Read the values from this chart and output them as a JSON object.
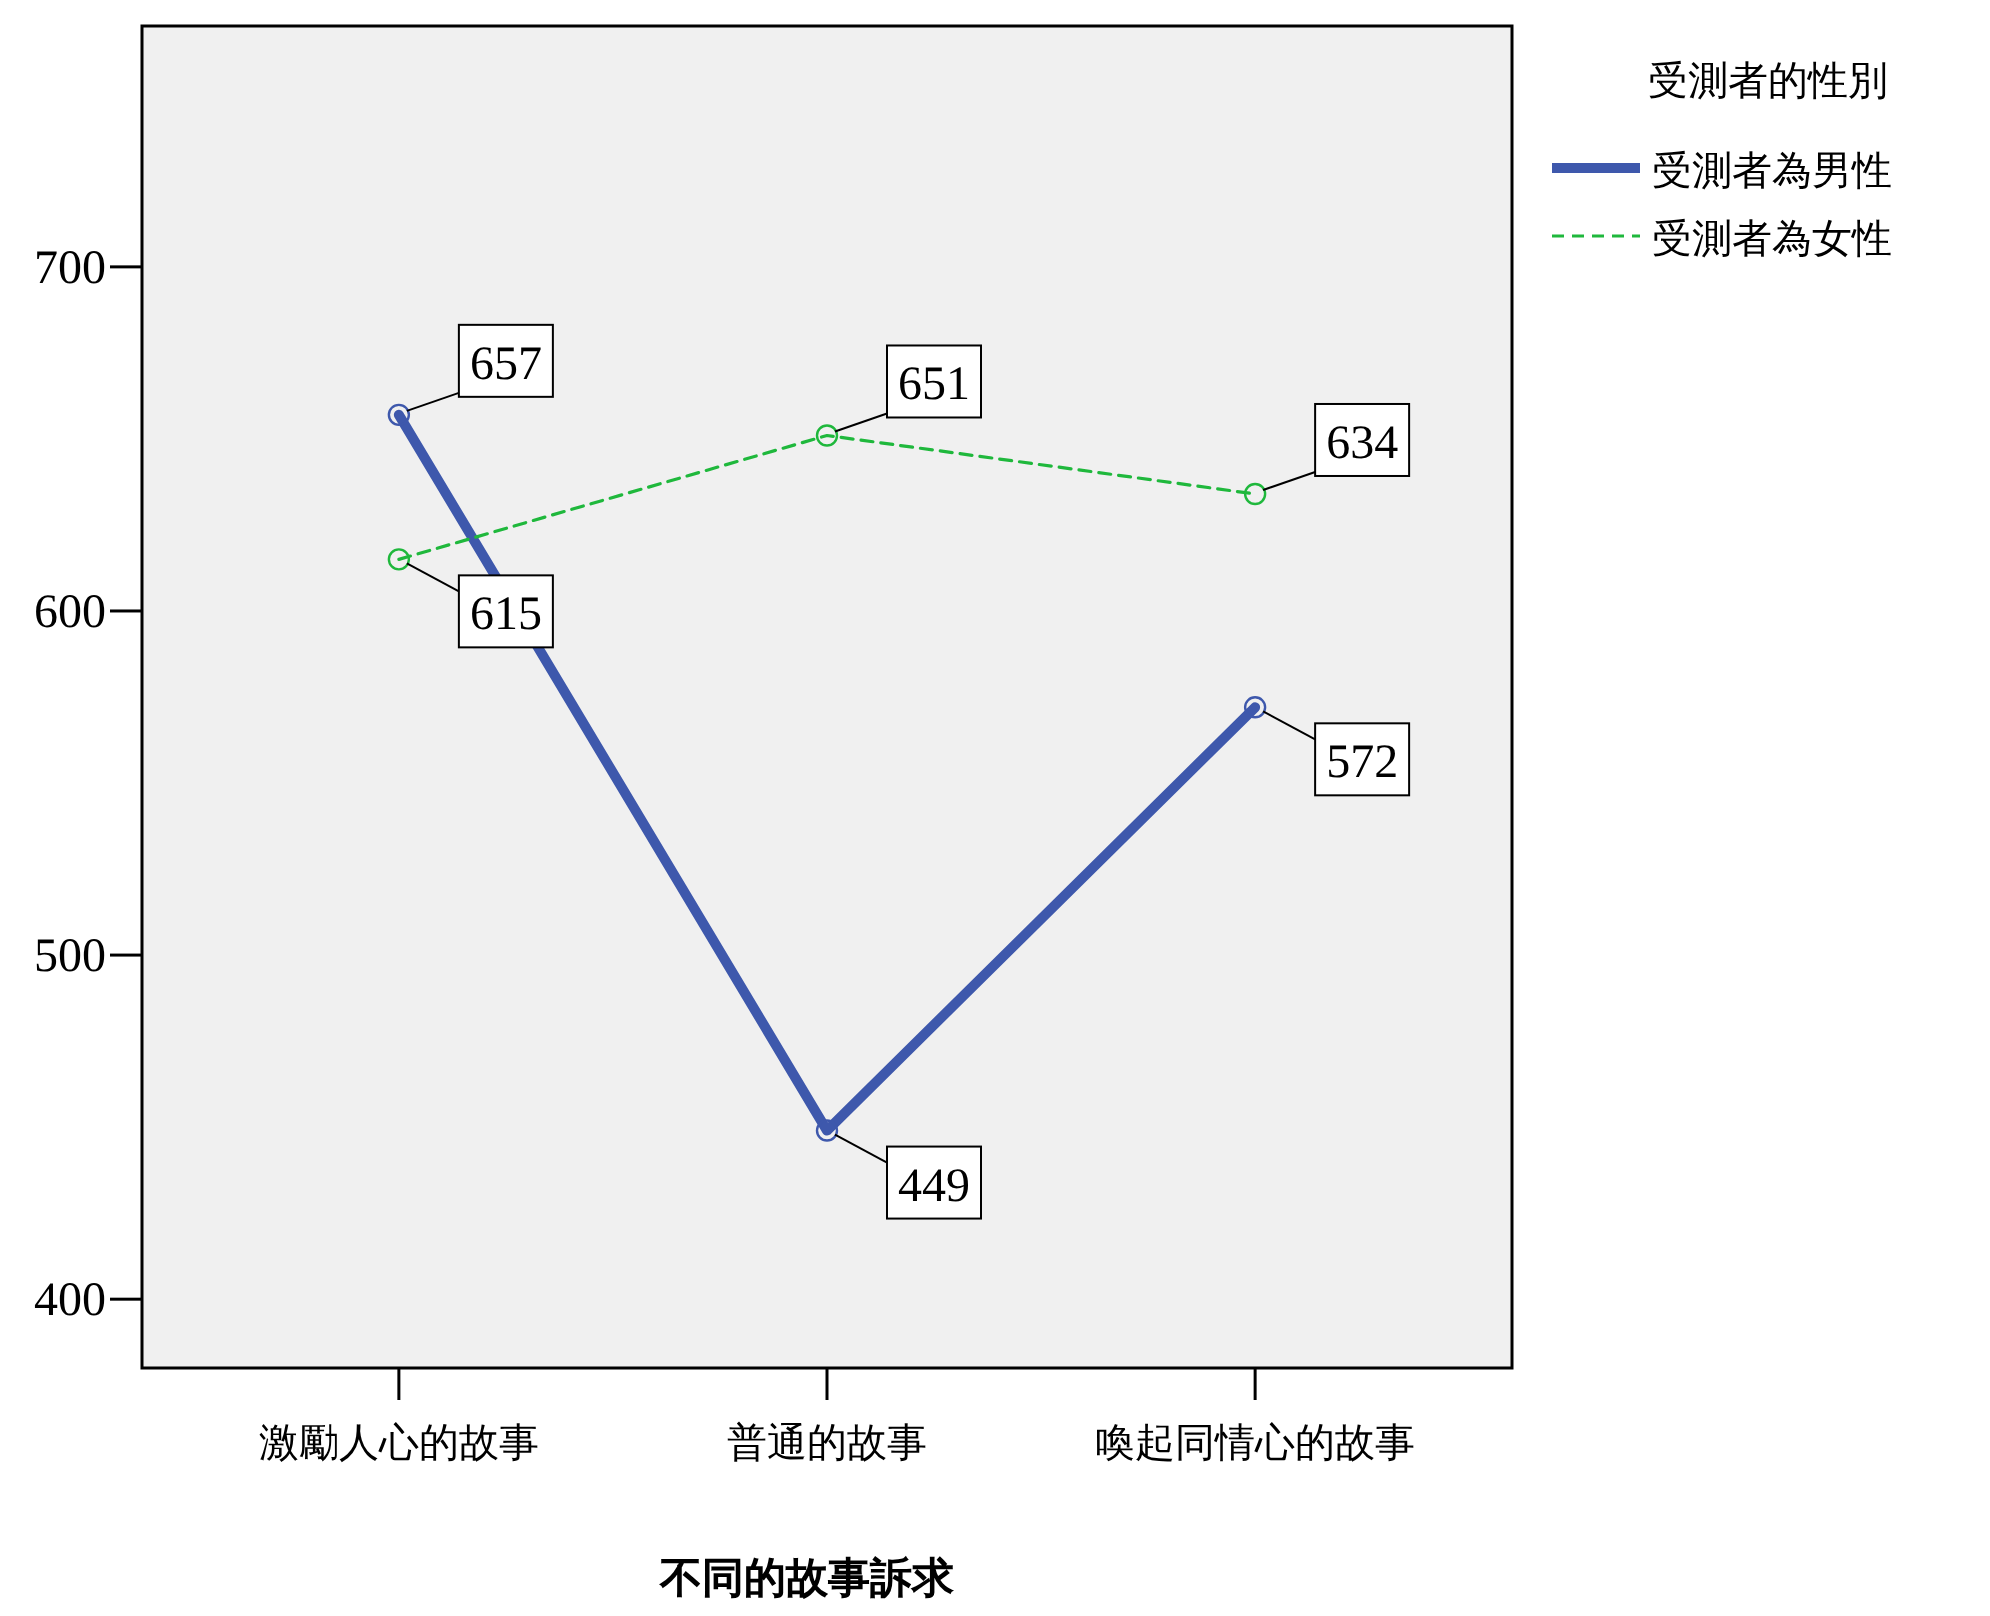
{
  "chart_data": {
    "type": "line",
    "xlabel": "不同的故事訴求",
    "legend_title": "受測者的性別",
    "categories": [
      "激勵人心的故事",
      "普通的故事",
      "喚起同情心的故事"
    ],
    "series": [
      {
        "name": "受測者為男性",
        "color": "#3e58ac",
        "values": [
          657,
          449,
          572
        ],
        "line_style": "solid"
      },
      {
        "name": "受測者為女性",
        "color": "#1fb83c",
        "values": [
          615,
          651,
          634
        ],
        "line_style": "dashed"
      }
    ],
    "ylim": [
      380,
      770
    ],
    "yticks": [
      400,
      500,
      600,
      700
    ],
    "grid": false,
    "legend": "top right",
    "marker": "circle",
    "data_labels": true
  }
}
